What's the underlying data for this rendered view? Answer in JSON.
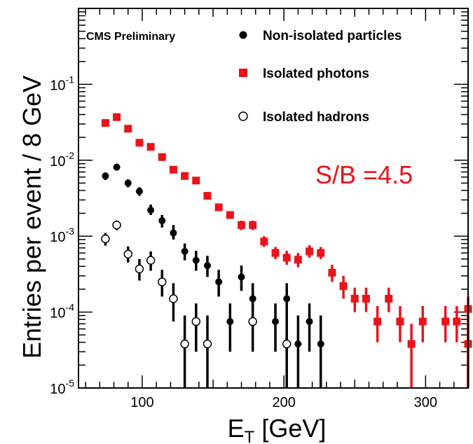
{
  "chart_data": {
    "type": "scatter",
    "title": "",
    "preliminary_label": "CMS Preliminary",
    "annotation": "S/B =4.5",
    "annotation_color": "#e8141a",
    "xlabel_main": "E",
    "xlabel_sub": "T",
    "xlabel_unit": " [GeV]",
    "ylabel": "Entries per event / 8 GeV",
    "xlim": [
      55,
      330
    ],
    "ylim": [
      1e-05,
      1
    ],
    "yscale": "log",
    "xticks": [
      100,
      200,
      300
    ],
    "yticks": [
      {
        "value": 1e-05,
        "base": "10",
        "exp": "-5"
      },
      {
        "value": 0.0001,
        "base": "10",
        "exp": "-4"
      },
      {
        "value": 0.001,
        "base": "10",
        "exp": "-3"
      },
      {
        "value": 0.01,
        "base": "10",
        "exp": "-2"
      },
      {
        "value": 0.1,
        "base": "10",
        "exp": "-1"
      }
    ],
    "legend_position": "top-right",
    "series": [
      {
        "name": "Non-isolated particles",
        "marker": "filled-circle",
        "color": "#000000",
        "points": [
          {
            "x": 74,
            "y": 0.0062,
            "lo": 0.0055,
            "hi": 0.0069
          },
          {
            "x": 82,
            "y": 0.0081,
            "lo": 0.0073,
            "hi": 0.009
          },
          {
            "x": 90,
            "y": 0.005,
            "lo": 0.0044,
            "hi": 0.0056
          },
          {
            "x": 98,
            "y": 0.0039,
            "lo": 0.0034,
            "hi": 0.0044
          },
          {
            "x": 106,
            "y": 0.0022,
            "lo": 0.0019,
            "hi": 0.0026
          },
          {
            "x": 114,
            "y": 0.0016,
            "lo": 0.0013,
            "hi": 0.0019
          },
          {
            "x": 122,
            "y": 0.0011,
            "lo": 0.0009,
            "hi": 0.0014
          },
          {
            "x": 130,
            "y": 0.00063,
            "lo": 0.00048,
            "hi": 0.0008
          },
          {
            "x": 138,
            "y": 0.00048,
            "lo": 0.00035,
            "hi": 0.00064
          },
          {
            "x": 146,
            "y": 0.00041,
            "lo": 0.00029,
            "hi": 0.00055
          },
          {
            "x": 154,
            "y": 0.00025,
            "lo": 0.00016,
            "hi": 0.00036
          },
          {
            "x": 162,
            "y": 7.5e-05,
            "lo": 3e-05,
            "hi": 0.00013
          },
          {
            "x": 170,
            "y": 0.00029,
            "lo": 0.00019,
            "hi": 0.00041
          },
          {
            "x": 178,
            "y": 0.00015,
            "lo": 7.5e-05,
            "hi": 0.00024
          },
          {
            "x": 194,
            "y": 7.5e-05,
            "lo": 3e-05,
            "hi": 0.00013
          },
          {
            "x": 202,
            "y": 0.00015,
            "lo": 7.5e-05,
            "hi": 0.00024
          },
          {
            "x": 210,
            "y": 3.8e-05,
            "lo": 1e-05,
            "hi": 9e-05
          },
          {
            "x": 218,
            "y": 7.5e-05,
            "lo": 3e-05,
            "hi": 0.00013
          },
          {
            "x": 226,
            "y": 3.8e-05,
            "lo": 1e-05,
            "hi": 9e-05
          },
          {
            "x": 330,
            "y": 3.8e-05,
            "lo": 1e-05,
            "hi": 9e-05
          }
        ]
      },
      {
        "name": "Isolated photons",
        "marker": "filled-square",
        "color": "#e8141a",
        "points": [
          {
            "x": 74,
            "y": 0.031,
            "lo": 0.029,
            "hi": 0.033
          },
          {
            "x": 82,
            "y": 0.037,
            "lo": 0.035,
            "hi": 0.039
          },
          {
            "x": 90,
            "y": 0.026,
            "lo": 0.024,
            "hi": 0.028
          },
          {
            "x": 98,
            "y": 0.017,
            "lo": 0.016,
            "hi": 0.018
          },
          {
            "x": 106,
            "y": 0.015,
            "lo": 0.014,
            "hi": 0.016
          },
          {
            "x": 114,
            "y": 0.011,
            "lo": 0.01,
            "hi": 0.012
          },
          {
            "x": 122,
            "y": 0.0075,
            "lo": 0.007,
            "hi": 0.008
          },
          {
            "x": 130,
            "y": 0.0062,
            "lo": 0.0057,
            "hi": 0.0067
          },
          {
            "x": 138,
            "y": 0.0054,
            "lo": 0.005,
            "hi": 0.0059
          },
          {
            "x": 146,
            "y": 0.0034,
            "lo": 0.0031,
            "hi": 0.0037
          },
          {
            "x": 154,
            "y": 0.0024,
            "lo": 0.0022,
            "hi": 0.0026
          },
          {
            "x": 162,
            "y": 0.0019,
            "lo": 0.0017,
            "hi": 0.0021
          },
          {
            "x": 170,
            "y": 0.0014,
            "lo": 0.0012,
            "hi": 0.0016
          },
          {
            "x": 178,
            "y": 0.0014,
            "lo": 0.0012,
            "hi": 0.0016
          },
          {
            "x": 186,
            "y": 0.00085,
            "lo": 0.00072,
            "hi": 0.001
          },
          {
            "x": 194,
            "y": 0.0006,
            "lo": 0.0005,
            "hi": 0.00072
          },
          {
            "x": 202,
            "y": 0.00052,
            "lo": 0.00042,
            "hi": 0.00064
          },
          {
            "x": 210,
            "y": 0.00049,
            "lo": 0.00039,
            "hi": 0.0006
          },
          {
            "x": 218,
            "y": 0.00063,
            "lo": 0.00052,
            "hi": 0.00076
          },
          {
            "x": 226,
            "y": 0.0006,
            "lo": 0.0005,
            "hi": 0.00072
          },
          {
            "x": 234,
            "y": 0.00033,
            "lo": 0.00025,
            "hi": 0.00042
          },
          {
            "x": 242,
            "y": 0.00022,
            "lo": 0.00015,
            "hi": 0.0003
          },
          {
            "x": 250,
            "y": 0.00015,
            "lo": 0.0001,
            "hi": 0.00021
          },
          {
            "x": 258,
            "y": 0.00015,
            "lo": 0.0001,
            "hi": 0.00021
          },
          {
            "x": 266,
            "y": 7.5e-05,
            "lo": 4e-05,
            "hi": 0.00012
          },
          {
            "x": 274,
            "y": 0.00015,
            "lo": 0.0001,
            "hi": 0.00021
          },
          {
            "x": 282,
            "y": 7.5e-05,
            "lo": 4e-05,
            "hi": 0.00012
          },
          {
            "x": 290,
            "y": 3.8e-05,
            "lo": 1e-05,
            "hi": 7e-05
          },
          {
            "x": 298,
            "y": 7.5e-05,
            "lo": 4e-05,
            "hi": 0.00012
          },
          {
            "x": 314,
            "y": 7.5e-05,
            "lo": 4e-05,
            "hi": 0.00012
          },
          {
            "x": 322,
            "y": 7.5e-05,
            "lo": 4e-05,
            "hi": 0.00012
          },
          {
            "x": 330,
            "y": 3.8e-05,
            "lo": 1e-05,
            "hi": 7e-05
          },
          {
            "x": 330,
            "y": 0.00011,
            "lo": 7e-05,
            "hi": 0.00016
          }
        ]
      },
      {
        "name": "Isolated hadrons",
        "marker": "open-circle",
        "color": "#000000",
        "points": [
          {
            "x": 74,
            "y": 0.00092,
            "lo": 0.00075,
            "hi": 0.0011
          },
          {
            "x": 82,
            "y": 0.0014,
            "lo": 0.0012,
            "hi": 0.0016
          },
          {
            "x": 90,
            "y": 0.00058,
            "lo": 0.00045,
            "hi": 0.00073
          },
          {
            "x": 98,
            "y": 0.00037,
            "lo": 0.00026,
            "hi": 0.0005
          },
          {
            "x": 106,
            "y": 0.00048,
            "lo": 0.00035,
            "hi": 0.00063
          },
          {
            "x": 114,
            "y": 0.00025,
            "lo": 0.00016,
            "hi": 0.00036
          },
          {
            "x": 122,
            "y": 0.00015,
            "lo": 7.5e-05,
            "hi": 0.00024
          },
          {
            "x": 130,
            "y": 3.8e-05,
            "lo": 1e-05,
            "hi": 9e-05
          },
          {
            "x": 138,
            "y": 7.5e-05,
            "lo": 3e-05,
            "hi": 0.00013
          },
          {
            "x": 146,
            "y": 3.8e-05,
            "lo": 1e-05,
            "hi": 9e-05
          },
          {
            "x": 178,
            "y": 7.5e-05,
            "lo": 3e-05,
            "hi": 0.00013
          },
          {
            "x": 202,
            "y": 3.8e-05,
            "lo": 1e-05,
            "hi": 9e-05
          }
        ]
      }
    ]
  }
}
